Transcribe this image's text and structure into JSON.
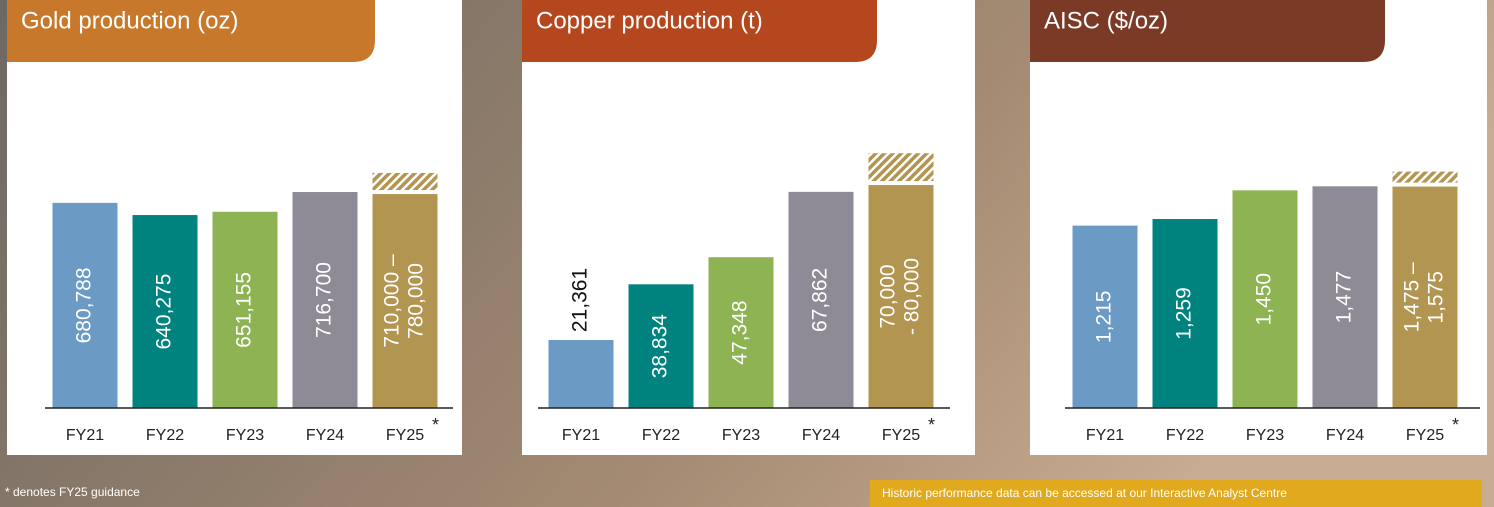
{
  "chart_data": [
    {
      "type": "bar",
      "title": "Gold production (oz)",
      "categories": [
        "FY21",
        "FY22",
        "FY23",
        "FY24",
        "FY25"
      ],
      "values": [
        680788,
        640275,
        651155,
        716700,
        710000
      ],
      "values_high": [
        null,
        null,
        null,
        null,
        780000
      ],
      "value_labels": [
        "680,788",
        "640,275",
        "651,155",
        "716,700",
        [
          "710,000 –",
          "780,000"
        ]
      ],
      "colors": [
        "#6b9ac4",
        "#00827f",
        "#8db352",
        "#8e8b96",
        "#b39552"
      ],
      "title_color": "#c8782a",
      "ylim": [
        0,
        1188000
      ],
      "guidance_marker": "*"
    },
    {
      "type": "bar",
      "title": "Copper production (t)",
      "categories": [
        "FY21",
        "FY22",
        "FY23",
        "FY24",
        "FY25"
      ],
      "values": [
        21361,
        38834,
        47348,
        67862,
        70000
      ],
      "values_high": [
        null,
        null,
        null,
        null,
        80000
      ],
      "value_labels": [
        "21,361",
        "38,834",
        "47,348",
        "67,862",
        [
          "70,000",
          "- 80,000"
        ]
      ],
      "colors": [
        "#6b9ac4",
        "#00827f",
        "#8db352",
        "#8e8b96",
        "#b39552"
      ],
      "title_color": "#b5471f",
      "ylim": [
        0,
        112400
      ],
      "guidance_marker": "*"
    },
    {
      "type": "bar",
      "title": "AISC ($/oz)",
      "categories": [
        "FY21",
        "FY22",
        "FY23",
        "FY24",
        "FY25"
      ],
      "values": [
        1215,
        1259,
        1450,
        1477,
        1475
      ],
      "values_high": [
        null,
        null,
        null,
        null,
        1575
      ],
      "value_labels": [
        "1,215",
        "1,259",
        "1,450",
        "1,477",
        [
          "1,475 –",
          "1,575"
        ]
      ],
      "colors": [
        "#6b9ac4",
        "#00827f",
        "#8db352",
        "#8e8b96",
        "#b39552"
      ],
      "title_color": "#7a3a26",
      "ylim": [
        0,
        2385
      ],
      "guidance_marker": "*"
    }
  ],
  "footnote": "* denotes FY25 guidance",
  "banner": "Historic performance data can be accessed at our Interactive Analyst Centre"
}
